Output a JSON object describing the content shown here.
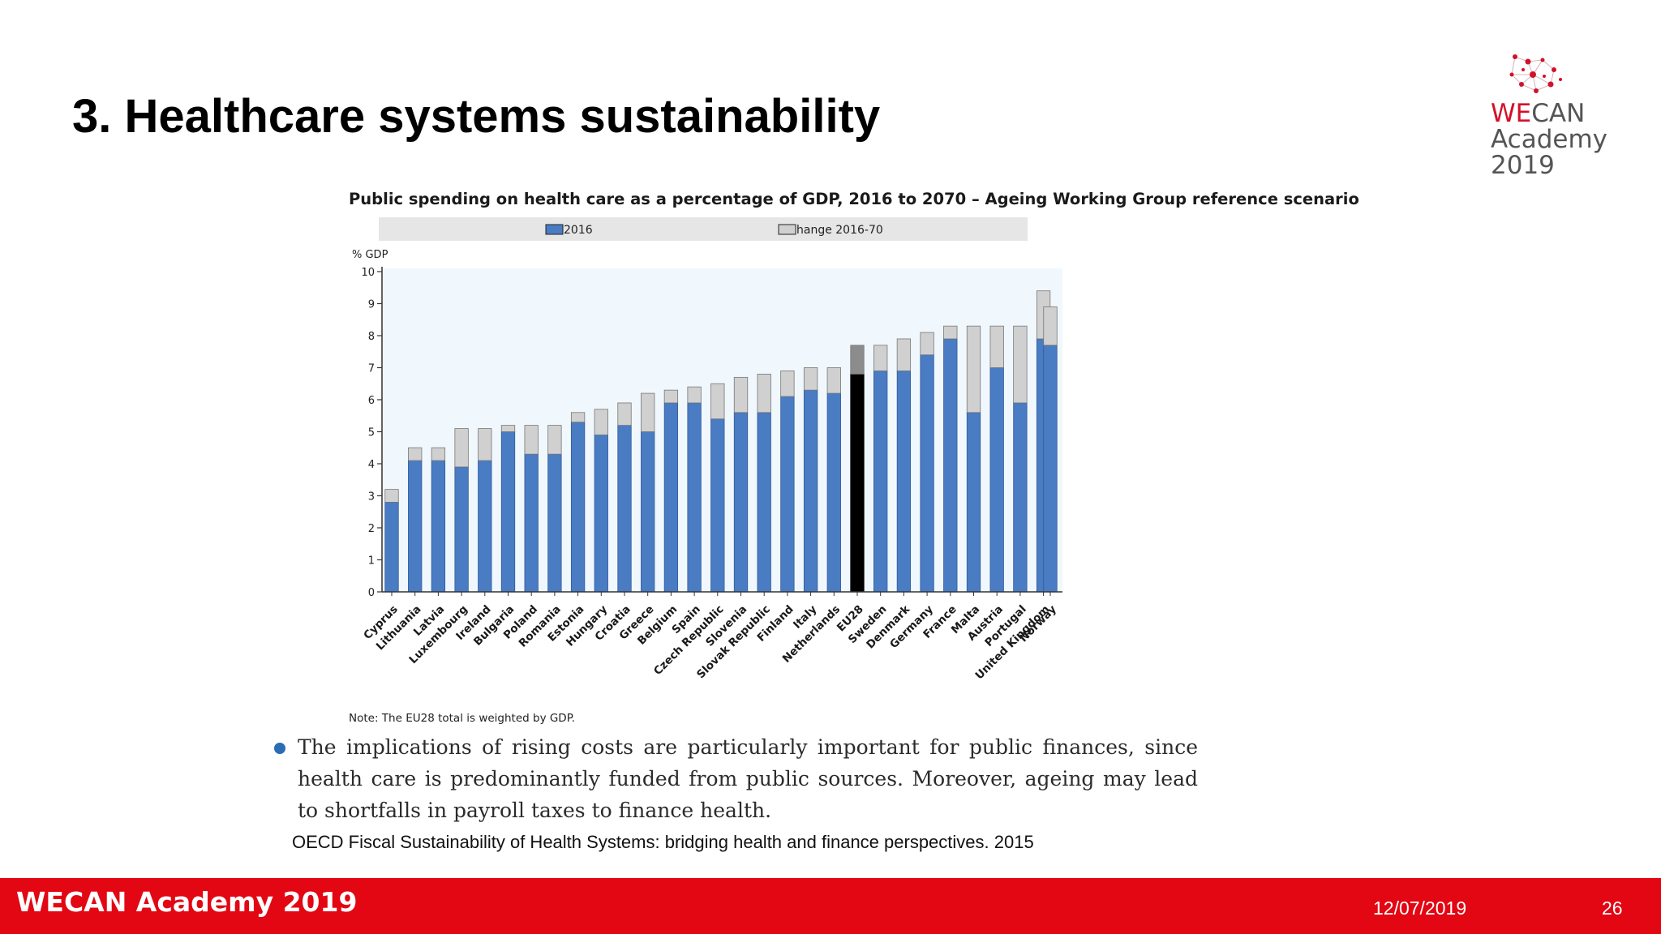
{
  "slide": {
    "title": "3. Healthcare systems sustainability",
    "logo": {
      "brand_we": "WE",
      "brand_can": "CAN",
      "line2": "Academy",
      "line3": "2019"
    },
    "bullet": "The implications of rising costs are particularly important for public finances, since health care is predominantly funded from public sources. Moreover, ageing may lead to shortfalls in payroll taxes to finance health.",
    "source": "OECD Fiscal Sustainability of Health Systems: bridging health and finance perspectives. 2015",
    "footer": {
      "brand": "WECAN Academy 2019",
      "date": "12/07/2019",
      "page": "26"
    }
  },
  "chart_data": {
    "type": "bar",
    "stacked": true,
    "title": "Public spending on health care as a percentage of GDP, 2016 to 2070 – Ageing Working Group reference scenario",
    "ylabel": "% GDP",
    "ylim": [
      0,
      10
    ],
    "yticks": [
      "0",
      "1",
      "2",
      "3",
      "4",
      "5",
      "6",
      "7",
      "8",
      "9",
      "10"
    ],
    "note": "Note: The EU28 total is weighted by GDP.",
    "legend_placement": "top",
    "categories": [
      "Cyprus",
      "Lithuania",
      "Latvia",
      "Luxembourg",
      "Ireland",
      "Bulgaria",
      "Poland",
      "Romania",
      "Estonia",
      "Hungary",
      "Croatia",
      "Greece",
      "Belgium",
      "Spain",
      "Czech Republic",
      "Slovenia",
      "Slovak Republic",
      "Finland",
      "Italy",
      "Netherlands",
      "EU28",
      "Sweden",
      "Denmark",
      "Germany",
      "France",
      "Malta",
      "Austria",
      "Portugal",
      "United Kingdom",
      "Norway"
    ],
    "series": [
      {
        "name": "2016",
        "color": "#4a7cc3",
        "values": [
          2.8,
          4.1,
          4.1,
          3.9,
          4.1,
          5.0,
          4.3,
          4.3,
          5.3,
          4.9,
          5.2,
          5.0,
          5.9,
          5.9,
          5.4,
          5.6,
          5.6,
          6.1,
          6.3,
          6.2,
          6.8,
          6.9,
          6.9,
          7.4,
          7.9,
          5.6,
          7.0,
          5.9,
          7.9,
          7.7
        ]
      },
      {
        "name": "Change 2016-70",
        "legend_label": "hange 2016-70",
        "color": "#d0d0d0",
        "values": [
          0.4,
          0.4,
          0.4,
          1.2,
          1.0,
          0.2,
          0.9,
          0.9,
          0.3,
          0.8,
          0.7,
          1.2,
          0.4,
          0.5,
          1.1,
          1.1,
          1.2,
          0.8,
          0.7,
          0.8,
          0.9,
          0.8,
          1.0,
          0.7,
          0.4,
          2.7,
          1.3,
          2.4,
          1.5,
          1.2
        ]
      }
    ],
    "highlight": {
      "category": "EU28",
      "base_color": "#000000",
      "change_color": "#8c8c8c"
    }
  }
}
